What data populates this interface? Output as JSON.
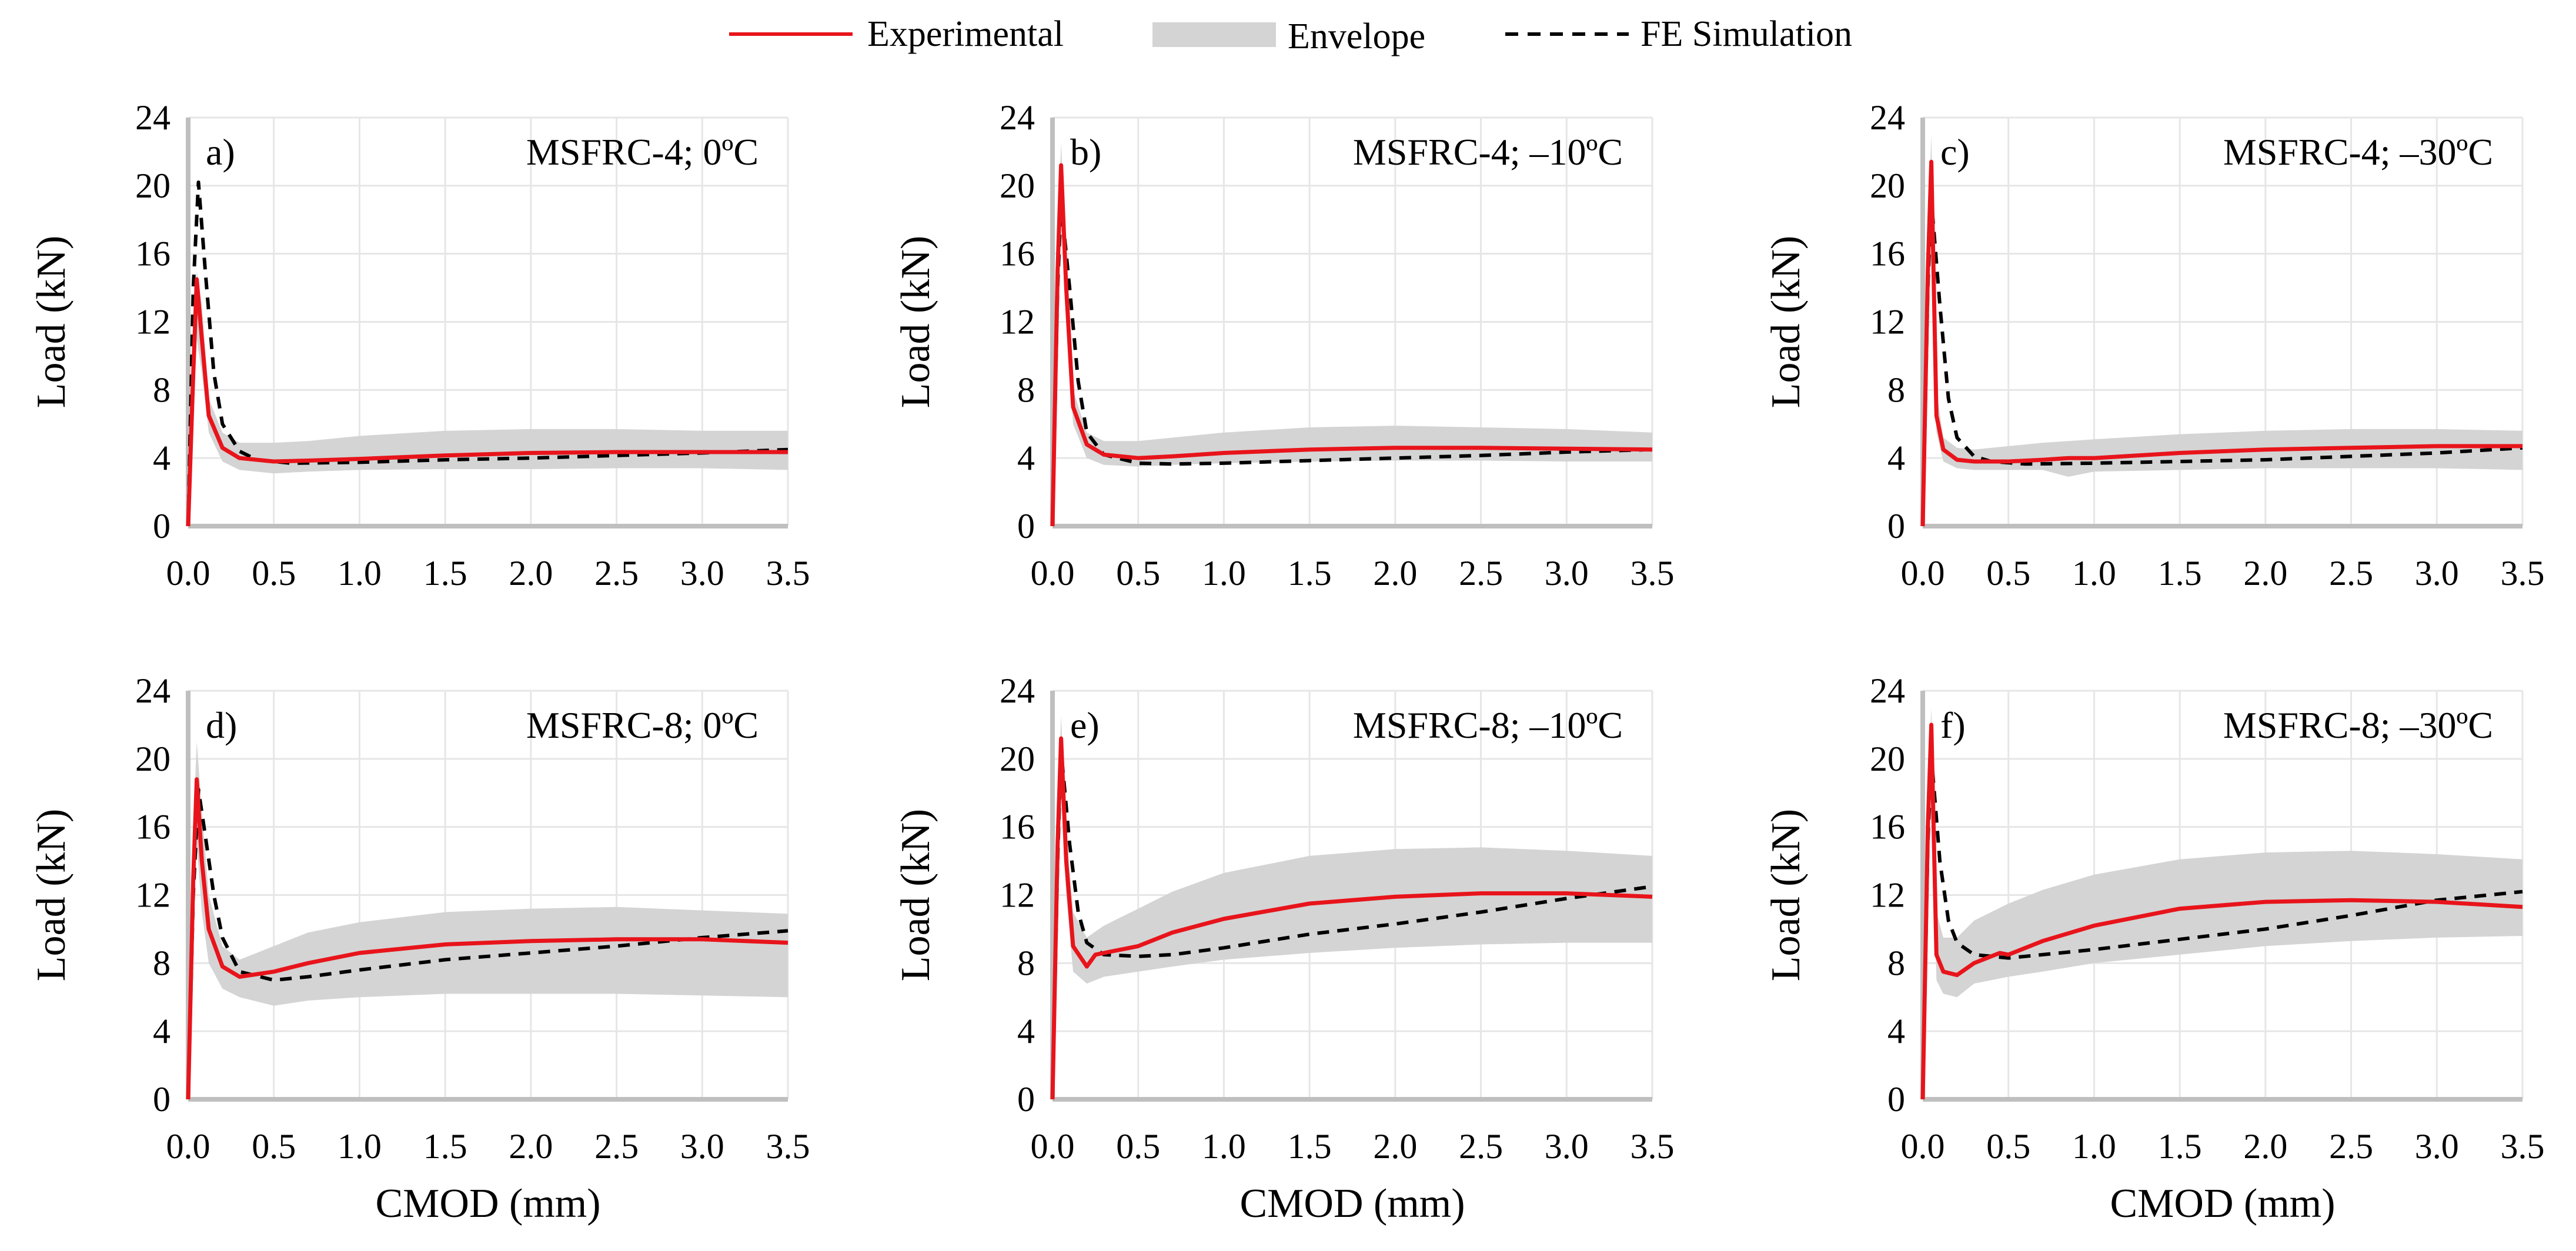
{
  "legend": {
    "experimental": "Experimental",
    "envelope": "Envelope",
    "fe": "FE Simulation"
  },
  "colors": {
    "experimental": "#e8141b",
    "envelope": "#d4d4d4",
    "fe": "#000000",
    "grid": "#e6e6e6",
    "axis": "#bfbfbf"
  },
  "chart_data": [
    {
      "type": "line",
      "panel": "a)",
      "label": "MSFRC-4; 0ºC",
      "xlabel": "",
      "ylabel": "Load (kN)",
      "xlim": [
        0,
        3.5
      ],
      "ylim": [
        0,
        24
      ],
      "xticks": [
        "0.0",
        "0.5",
        "1.0",
        "1.5",
        "2.0",
        "2.5",
        "3.0",
        "3.5"
      ],
      "yticks": [
        "0",
        "4",
        "8",
        "12",
        "16",
        "20",
        "24"
      ],
      "series": [
        {
          "name": "Experimental",
          "x": [
            0,
            0.03,
            0.05,
            0.08,
            0.12,
            0.2,
            0.3,
            0.5,
            0.7,
            1.0,
            1.5,
            2.0,
            2.5,
            3.0,
            3.5
          ],
          "y": [
            0,
            9,
            14.5,
            11,
            6.5,
            4.6,
            4.0,
            3.8,
            3.85,
            3.95,
            4.15,
            4.3,
            4.35,
            4.35,
            4.35
          ]
        },
        {
          "name": "FE Simulation",
          "x": [
            0,
            0.03,
            0.06,
            0.1,
            0.15,
            0.2,
            0.3,
            0.4,
            0.6,
            1.0,
            1.5,
            2.0,
            2.5,
            3.0,
            3.5
          ],
          "y": [
            0,
            14,
            20.2,
            15,
            9,
            6,
            4.4,
            3.9,
            3.7,
            3.75,
            3.9,
            4.0,
            4.15,
            4.3,
            4.5
          ]
        },
        {
          "name": "Envelope",
          "x": [
            0,
            0.03,
            0.05,
            0.08,
            0.12,
            0.2,
            0.3,
            0.5,
            0.7,
            1.0,
            1.5,
            2.0,
            2.5,
            3.0,
            3.5
          ],
          "low": [
            0,
            6,
            11,
            9,
            5.5,
            3.8,
            3.3,
            3.1,
            3.2,
            3.3,
            3.35,
            3.35,
            3.4,
            3.4,
            3.3
          ],
          "high": [
            0,
            11,
            15,
            13,
            7.5,
            5.5,
            4.9,
            4.9,
            5.0,
            5.3,
            5.6,
            5.7,
            5.7,
            5.6,
            5.6
          ]
        }
      ]
    },
    {
      "type": "line",
      "panel": "b)",
      "label": "MSFRC-4; –10ºC",
      "xlabel": "",
      "ylabel": "Load (kN)",
      "xlim": [
        0,
        3.5
      ],
      "ylim": [
        0,
        24
      ],
      "xticks": [
        "0.0",
        "0.5",
        "1.0",
        "1.5",
        "2.0",
        "2.5",
        "3.0",
        "3.5"
      ],
      "yticks": [
        "0",
        "4",
        "8",
        "12",
        "16",
        "20",
        "24"
      ],
      "series": [
        {
          "name": "Experimental",
          "x": [
            0,
            0.03,
            0.05,
            0.08,
            0.12,
            0.2,
            0.3,
            0.5,
            0.7,
            1.0,
            1.5,
            2.0,
            2.5,
            3.0,
            3.5
          ],
          "y": [
            0,
            15,
            21.2,
            14,
            7,
            4.8,
            4.2,
            4.0,
            4.1,
            4.3,
            4.5,
            4.6,
            4.6,
            4.55,
            4.5
          ]
        },
        {
          "name": "FE Simulation",
          "x": [
            0,
            0.03,
            0.05,
            0.1,
            0.15,
            0.2,
            0.3,
            0.5,
            0.7,
            1.0,
            1.5,
            2.0,
            2.5,
            3.0,
            3.5
          ],
          "y": [
            0,
            14,
            19,
            14,
            8.5,
            5.5,
            4.2,
            3.7,
            3.65,
            3.7,
            3.85,
            4.0,
            4.15,
            4.35,
            4.5
          ]
        },
        {
          "name": "Envelope",
          "x": [
            0,
            0.03,
            0.05,
            0.08,
            0.12,
            0.2,
            0.3,
            0.5,
            0.7,
            1.0,
            1.5,
            2.0,
            2.5,
            3.0,
            3.5
          ],
          "low": [
            0,
            12,
            18,
            12,
            6,
            4.0,
            3.6,
            3.5,
            3.6,
            3.7,
            3.8,
            3.85,
            3.85,
            3.8,
            3.8
          ],
          "high": [
            0,
            17,
            22.5,
            16,
            8,
            5.5,
            5.0,
            5.0,
            5.2,
            5.5,
            5.8,
            5.9,
            5.8,
            5.7,
            5.5
          ]
        }
      ]
    },
    {
      "type": "line",
      "panel": "c)",
      "label": "MSFRC-4; –30ºC",
      "xlabel": "",
      "ylabel": "Load (kN)",
      "xlim": [
        0,
        3.5
      ],
      "ylim": [
        0,
        24
      ],
      "xticks": [
        "0.0",
        "0.5",
        "1.0",
        "1.5",
        "2.0",
        "2.5",
        "3.0",
        "3.5"
      ],
      "yticks": [
        "0",
        "4",
        "8",
        "12",
        "16",
        "20",
        "24"
      ],
      "series": [
        {
          "name": "Experimental",
          "x": [
            0,
            0.03,
            0.05,
            0.08,
            0.12,
            0.2,
            0.3,
            0.5,
            0.7,
            0.85,
            1.0,
            1.5,
            2.0,
            2.5,
            3.0,
            3.5
          ],
          "y": [
            0,
            15,
            21.4,
            6.5,
            4.5,
            3.9,
            3.8,
            3.8,
            3.9,
            4.0,
            4.0,
            4.3,
            4.5,
            4.6,
            4.7,
            4.7
          ]
        },
        {
          "name": "FE Simulation",
          "x": [
            0,
            0.03,
            0.05,
            0.1,
            0.15,
            0.2,
            0.3,
            0.4,
            0.6,
            1.0,
            1.5,
            2.0,
            2.5,
            3.0,
            3.5
          ],
          "y": [
            0,
            14,
            19.2,
            13,
            7.5,
            5.2,
            4.1,
            3.8,
            3.65,
            3.7,
            3.8,
            3.9,
            4.1,
            4.3,
            4.6
          ]
        },
        {
          "name": "Envelope",
          "x": [
            0,
            0.03,
            0.05,
            0.08,
            0.12,
            0.2,
            0.3,
            0.5,
            0.7,
            0.85,
            1.0,
            1.5,
            2.0,
            2.5,
            3.0,
            3.5
          ],
          "low": [
            0,
            12,
            18,
            5.5,
            3.8,
            3.4,
            3.3,
            3.3,
            3.3,
            2.9,
            3.2,
            3.3,
            3.4,
            3.4,
            3.4,
            3.3
          ],
          "high": [
            0,
            17,
            23,
            8,
            5.2,
            4.6,
            4.5,
            4.7,
            4.9,
            5.0,
            5.1,
            5.4,
            5.6,
            5.7,
            5.7,
            5.6
          ]
        }
      ]
    },
    {
      "type": "line",
      "panel": "d)",
      "label": "MSFRC-8; 0ºC",
      "xlabel": "CMOD (mm)",
      "ylabel": "Load (kN)",
      "xlim": [
        0,
        3.5
      ],
      "ylim": [
        0,
        24
      ],
      "xticks": [
        "0.0",
        "0.5",
        "1.0",
        "1.5",
        "2.0",
        "2.5",
        "3.0",
        "3.5"
      ],
      "yticks": [
        "0",
        "4",
        "8",
        "12",
        "16",
        "20",
        "24"
      ],
      "series": [
        {
          "name": "Experimental",
          "x": [
            0,
            0.03,
            0.05,
            0.08,
            0.12,
            0.2,
            0.3,
            0.5,
            0.7,
            1.0,
            1.5,
            2.0,
            2.5,
            3.0,
            3.5
          ],
          "y": [
            0,
            13,
            18.8,
            14,
            10,
            7.8,
            7.2,
            7.5,
            8.0,
            8.6,
            9.1,
            9.3,
            9.4,
            9.4,
            9.2
          ]
        },
        {
          "name": "FE Simulation",
          "x": [
            0,
            0.03,
            0.06,
            0.1,
            0.15,
            0.2,
            0.3,
            0.5,
            0.7,
            1.0,
            1.5,
            2.0,
            2.5,
            3.0,
            3.5
          ],
          "y": [
            0,
            12,
            18.2,
            15.5,
            12,
            9.5,
            7.5,
            7.0,
            7.2,
            7.6,
            8.2,
            8.6,
            9.0,
            9.5,
            9.9
          ]
        },
        {
          "name": "Envelope",
          "x": [
            0,
            0.03,
            0.05,
            0.08,
            0.12,
            0.2,
            0.3,
            0.5,
            0.7,
            1.0,
            1.5,
            2.0,
            2.5,
            3.0,
            3.5
          ],
          "low": [
            0,
            10,
            15,
            11,
            8,
            6.5,
            6.0,
            5.5,
            5.8,
            6.0,
            6.2,
            6.2,
            6.2,
            6.1,
            6.0
          ],
          "high": [
            0,
            16,
            21,
            17,
            12,
            9,
            8.2,
            9.0,
            9.8,
            10.4,
            11.0,
            11.2,
            11.3,
            11.1,
            10.9
          ]
        }
      ]
    },
    {
      "type": "line",
      "panel": "e)",
      "label": "MSFRC-8; –10ºC",
      "xlabel": "CMOD (mm)",
      "ylabel": "Load (kN)",
      "xlim": [
        0,
        3.5
      ],
      "ylim": [
        0,
        24
      ],
      "xticks": [
        "0.0",
        "0.5",
        "1.0",
        "1.5",
        "2.0",
        "2.5",
        "3.0",
        "3.5"
      ],
      "yticks": [
        "0",
        "4",
        "8",
        "12",
        "16",
        "20",
        "24"
      ],
      "series": [
        {
          "name": "Experimental",
          "x": [
            0,
            0.03,
            0.05,
            0.08,
            0.12,
            0.2,
            0.25,
            0.3,
            0.5,
            0.7,
            1.0,
            1.5,
            2.0,
            2.5,
            3.0,
            3.5
          ],
          "y": [
            0,
            15,
            21.2,
            14,
            9,
            7.8,
            8.5,
            8.6,
            9.0,
            9.8,
            10.6,
            11.5,
            11.9,
            12.1,
            12.1,
            11.9
          ]
        },
        {
          "name": "FE Simulation",
          "x": [
            0,
            0.03,
            0.05,
            0.1,
            0.15,
            0.2,
            0.3,
            0.5,
            0.7,
            1.0,
            1.5,
            2.0,
            2.5,
            3.0,
            3.5
          ],
          "y": [
            0,
            14,
            20.5,
            15,
            11,
            9.2,
            8.5,
            8.4,
            8.5,
            8.9,
            9.7,
            10.3,
            11.0,
            11.8,
            12.5
          ]
        },
        {
          "name": "Envelope",
          "x": [
            0,
            0.03,
            0.05,
            0.08,
            0.12,
            0.2,
            0.3,
            0.5,
            0.7,
            1.0,
            1.5,
            2.0,
            2.5,
            3.0,
            3.5
          ],
          "low": [
            0,
            12,
            18,
            12,
            7.5,
            6.8,
            7.2,
            7.5,
            7.8,
            8.2,
            8.6,
            8.9,
            9.1,
            9.2,
            9.2
          ],
          "high": [
            0,
            17,
            22.5,
            16,
            11,
            9.5,
            10.2,
            11.2,
            12.2,
            13.3,
            14.3,
            14.7,
            14.8,
            14.6,
            14.3
          ]
        }
      ]
    },
    {
      "type": "line",
      "panel": "f)",
      "label": "MSFRC-8; –30ºC",
      "xlabel": "CMOD (mm)",
      "ylabel": "Load (kN)",
      "xlim": [
        0,
        3.5
      ],
      "ylim": [
        0,
        24
      ],
      "xticks": [
        "0.0",
        "0.5",
        "1.0",
        "1.5",
        "2.0",
        "2.5",
        "3.0",
        "3.5"
      ],
      "yticks": [
        "0",
        "4",
        "8",
        "12",
        "16",
        "20",
        "24"
      ],
      "series": [
        {
          "name": "Experimental",
          "x": [
            0,
            0.03,
            0.05,
            0.08,
            0.12,
            0.2,
            0.3,
            0.45,
            0.5,
            0.7,
            1.0,
            1.5,
            2.0,
            2.5,
            3.0,
            3.5
          ],
          "y": [
            0,
            16,
            22,
            8.5,
            7.5,
            7.3,
            8.0,
            8.6,
            8.5,
            9.3,
            10.2,
            11.2,
            11.6,
            11.7,
            11.6,
            11.3
          ]
        },
        {
          "name": "FE Simulation",
          "x": [
            0,
            0.03,
            0.05,
            0.1,
            0.15,
            0.2,
            0.3,
            0.5,
            0.7,
            1.0,
            1.5,
            2.0,
            2.5,
            3.0,
            3.5
          ],
          "y": [
            0,
            15,
            20.2,
            14,
            10.5,
            9.2,
            8.5,
            8.3,
            8.5,
            8.8,
            9.4,
            10.0,
            10.8,
            11.7,
            12.2
          ]
        },
        {
          "name": "Envelope",
          "x": [
            0,
            0.03,
            0.05,
            0.08,
            0.12,
            0.2,
            0.3,
            0.5,
            0.7,
            1.0,
            1.5,
            2.0,
            2.5,
            3.0,
            3.5
          ],
          "low": [
            0,
            13,
            19,
            7,
            6.2,
            6.0,
            6.8,
            7.2,
            7.5,
            8.0,
            8.5,
            9.0,
            9.3,
            9.5,
            9.6
          ],
          "high": [
            0,
            18,
            23,
            11,
            9.5,
            9.5,
            10.5,
            11.5,
            12.3,
            13.2,
            14.1,
            14.5,
            14.6,
            14.4,
            14.1
          ]
        }
      ]
    }
  ]
}
